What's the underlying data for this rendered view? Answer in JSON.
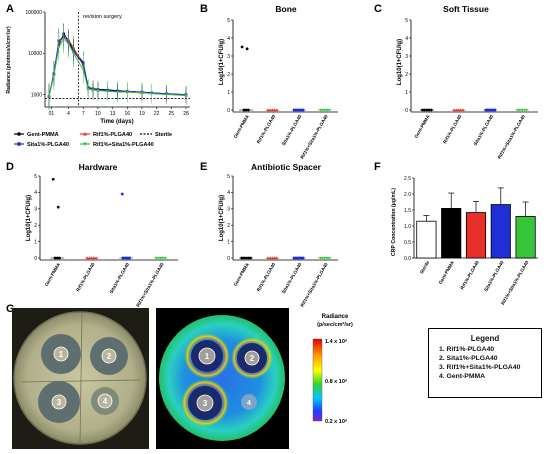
{
  "panels": {
    "A": {
      "letter": "A",
      "annotation": "revision surgery",
      "xlabel": "Time (days)",
      "ylabel": "Radiance (photons/s/cm²/sr)",
      "yticks": [
        "1000",
        "10000",
        "100000"
      ],
      "xticks": [
        "01",
        "4",
        "7",
        "10",
        "13",
        "16",
        "19",
        "22",
        "25",
        "28"
      ],
      "legend": [
        {
          "label": "Gent-PMMA",
          "color": "#000000"
        },
        {
          "label": "Rif1%-PLGA40",
          "color": "#e8302a"
        },
        {
          "label": "Sterile",
          "color": "#000000"
        },
        {
          "label": "Sita1%-PLGA40",
          "color": "#1f2fd6"
        },
        {
          "label": "Rif1%+Sita1%-PLGA40",
          "color": "#37c43a"
        }
      ]
    },
    "B": {
      "letter": "B",
      "title": "Bone",
      "ylabel": "Log10(1+CFU/g)"
    },
    "C": {
      "letter": "C",
      "title": "Soft Tissue",
      "ylabel": "Log10(1+CFU/g)"
    },
    "D": {
      "letter": "D",
      "title": "Hardware",
      "ylabel": "Log10(1+CFU/g)"
    },
    "E": {
      "letter": "E",
      "title": "Antibiotic Spacer",
      "ylabel": "Log10(1+CFU/g)"
    },
    "F": {
      "letter": "F",
      "ylabel": "CRP Concentration (μg/mL)"
    },
    "G": {
      "letter": "G"
    }
  },
  "cfu_yticks": [
    "0",
    "1",
    "2",
    "3",
    "4",
    "5"
  ],
  "cfu_categories": [
    "Gent-PMMA",
    "Rif1%-PLGA40",
    "Sita1%-PLGA40",
    "Rif1%+Sita1%-PLGA40"
  ],
  "crp_yticks": [
    "0.0",
    "0.5",
    "1.0",
    "1.5",
    "2.0",
    "2.5"
  ],
  "crp_categories": [
    "Sterile",
    "Gent-PMMA",
    "Rif1%-PLGA40",
    "Sita1%-PLGA40",
    "Rif1%+Sita1%-PLGA40"
  ],
  "series_colors": {
    "gent": "#000000",
    "rif": "#e8302a",
    "sita": "#1f2fd6",
    "combo": "#37c43a"
  },
  "chart_data": [
    {
      "panel": "A",
      "type": "line",
      "x": [
        0,
        1,
        2,
        3,
        4,
        5,
        7,
        8,
        9,
        10,
        12,
        14,
        16,
        19,
        21,
        24,
        28
      ],
      "yscale": "log",
      "ylim": [
        500,
        100000
      ],
      "xlim": [
        0,
        28
      ],
      "threshold": 800,
      "series": [
        {
          "name": "Gent-PMMA",
          "values": [
            900,
            3000,
            15000,
            30000,
            20000,
            12000,
            6000,
            1500,
            1400,
            1350,
            1300,
            1250,
            1200,
            1150,
            1100,
            1050,
            1000
          ]
        },
        {
          "name": "Rif1%-PLGA40",
          "values": [
            900,
            3500,
            18000,
            24000,
            21000,
            14000,
            5000,
            1400,
            1300,
            1250,
            1250,
            1200,
            1150,
            1100,
            1100,
            1050,
            950
          ]
        },
        {
          "name": "Sita1%-PLGA40",
          "values": [
            900,
            3200,
            20000,
            26000,
            18000,
            11000,
            5500,
            1450,
            1350,
            1300,
            1250,
            1200,
            1200,
            1150,
            1100,
            1050,
            1000
          ]
        },
        {
          "name": "Rif1%+Sita1%-PLGA40",
          "values": [
            900,
            2800,
            14000,
            22000,
            17000,
            10000,
            4000,
            1350,
            1300,
            1250,
            1200,
            1150,
            1150,
            1100,
            1050,
            1000,
            950
          ]
        }
      ]
    },
    {
      "panel": "B",
      "type": "scatter",
      "title": "Bone",
      "ylim": [
        0,
        5
      ],
      "points": [
        [
          3.5,
          3.4,
          0,
          0,
          0
        ],
        [
          0,
          0,
          0,
          0,
          0
        ],
        [
          0,
          0,
          0,
          0,
          0
        ],
        [
          0,
          0,
          0,
          0,
          0
        ]
      ]
    },
    {
      "panel": "C",
      "type": "scatter",
      "title": "Soft Tissue",
      "ylim": [
        0,
        5
      ],
      "points": [
        [
          0,
          0,
          0,
          0,
          0
        ],
        [
          0,
          0,
          0,
          0,
          0
        ],
        [
          0,
          0,
          0,
          0,
          0
        ],
        [
          0,
          0,
          0,
          0,
          0
        ]
      ]
    },
    {
      "panel": "D",
      "type": "scatter",
      "title": "Hardware",
      "ylim": [
        0,
        5
      ],
      "points": [
        [
          4.8,
          3.1,
          0,
          0,
          0
        ],
        [
          0,
          0,
          0,
          0,
          0
        ],
        [
          3.9,
          0,
          0,
          0,
          0
        ],
        [
          0,
          0,
          0,
          0,
          0
        ]
      ]
    },
    {
      "panel": "E",
      "type": "scatter",
      "title": "Antibiotic Spacer",
      "ylim": [
        0,
        5
      ],
      "points": [
        [
          0,
          0,
          0,
          0,
          0
        ],
        [
          0,
          0,
          0,
          0,
          0
        ],
        [
          0,
          0,
          0,
          0,
          0
        ],
        [
          0,
          0,
          0,
          0,
          0
        ]
      ]
    },
    {
      "panel": "F",
      "type": "bar",
      "ylim": [
        0,
        2.5
      ],
      "categories": [
        "Sterile",
        "Gent-PMMA",
        "Rif1%-PLGA40",
        "Sita1%-PLGA40",
        "Rif1%+Sita1%-PLGA40"
      ],
      "values": [
        1.15,
        1.55,
        1.42,
        1.67,
        1.3
      ],
      "errors": [
        0.18,
        0.48,
        0.35,
        0.52,
        0.45
      ],
      "colors": [
        "#ffffff",
        "#000000",
        "#e8302a",
        "#1f2fd6",
        "#37c43a"
      ]
    }
  ],
  "plates": {
    "labels": [
      "1",
      "2",
      "3",
      "4"
    ],
    "radiance_title": "Radiance",
    "radiance_units": "(p/sec/cm²/sr)",
    "colorbar_ticks": [
      "1.4 x 10⁶",
      "0.8 x 10⁶",
      "0.2 x 10⁶"
    ]
  },
  "legend": {
    "title": "Legend",
    "items": [
      "1. Rif1%-PLGA40",
      "2. Sita1%-PLGA40",
      "3. Rif1%+Sita1%-PLGA40",
      "4. Gent-PMMA"
    ]
  }
}
